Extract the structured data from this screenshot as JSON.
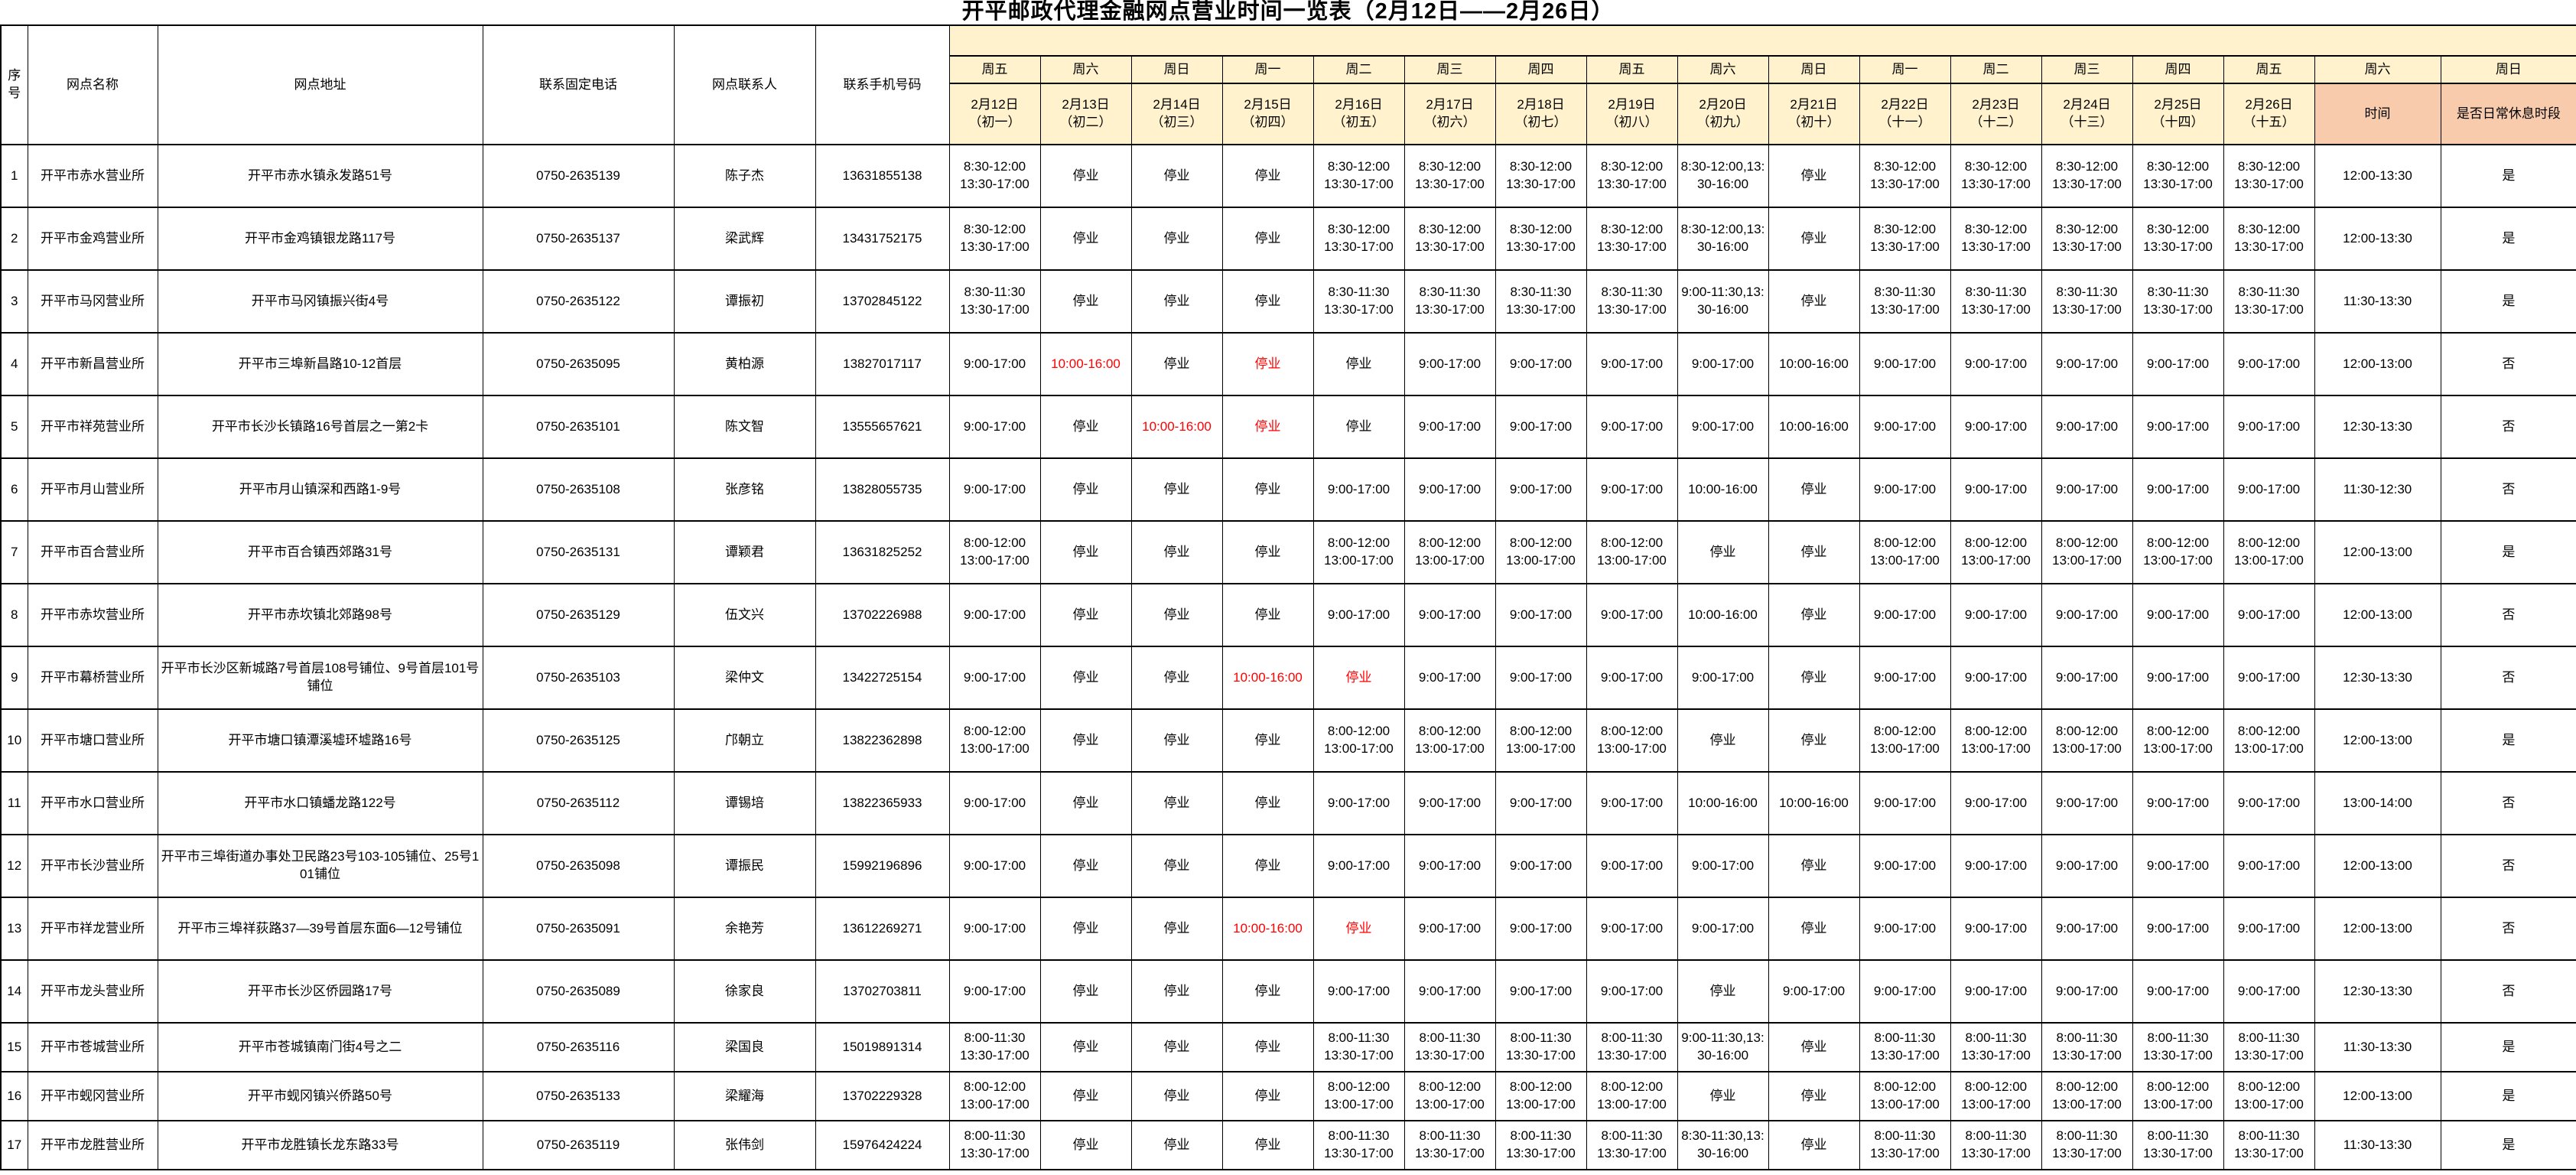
{
  "title": "开平邮政代理金融网点营业时间一览表（2月12日——2月26日）",
  "colors": {
    "header_bg": "#FFF2CC",
    "rest_header_bg": "#F8CBAD",
    "special_red": "#FF0000",
    "border": "#000000"
  },
  "table": {
    "info_headers": [
      "序号",
      "网点名称",
      "网点地址",
      "联系固定电话",
      "网点联系人",
      "联系手机号码"
    ],
    "date_columns": [
      {
        "weekday": "周五",
        "date": "2月12日",
        "lunar": "（初一）"
      },
      {
        "weekday": "周六",
        "date": "2月13日",
        "lunar": "（初二）"
      },
      {
        "weekday": "周日",
        "date": "2月14日",
        "lunar": "（初三）"
      },
      {
        "weekday": "周一",
        "date": "2月15日",
        "lunar": "（初四）"
      },
      {
        "weekday": "周二",
        "date": "2月16日",
        "lunar": "（初五）"
      },
      {
        "weekday": "周三",
        "date": "2月17日",
        "lunar": "（初六）"
      },
      {
        "weekday": "周四",
        "date": "2月18日",
        "lunar": "（初七）"
      },
      {
        "weekday": "周五",
        "date": "2月19日",
        "lunar": "（初八）"
      },
      {
        "weekday": "周六",
        "date": "2月20日",
        "lunar": "（初九）"
      },
      {
        "weekday": "周日",
        "date": "2月21日",
        "lunar": "（初十）"
      },
      {
        "weekday": "周一",
        "date": "2月22日",
        "lunar": "（十一）"
      },
      {
        "weekday": "周二",
        "date": "2月23日",
        "lunar": "（十二）"
      },
      {
        "weekday": "周三",
        "date": "2月24日",
        "lunar": "（十三）"
      },
      {
        "weekday": "周四",
        "date": "2月25日",
        "lunar": "（十四）"
      },
      {
        "weekday": "周五",
        "date": "2月26日",
        "lunar": "（十五）"
      }
    ],
    "rest_columns": [
      {
        "weekday": "周六",
        "label": "时间"
      },
      {
        "weekday": "周日",
        "label": "是否日常休息时段"
      }
    ],
    "closed_label": "停业",
    "rows": [
      {
        "no": "1",
        "name": "开平市赤水营业所",
        "address": "开平市赤水镇永发路51号",
        "landline": "0750-2635139",
        "contact": "陈子杰",
        "mobile": "13631855138",
        "schedule": [
          "8:30-12:00\n13:30-17:00",
          "停业",
          "停业",
          "停业",
          "8:30-12:00\n13:30-17:00",
          "8:30-12:00\n13:30-17:00",
          "8:30-12:00\n13:30-17:00",
          "8:30-12:00\n13:30-17:00",
          "8:30-12:00,13:30-16:00",
          "停业",
          "8:30-12:00\n13:30-17:00",
          "8:30-12:00\n13:30-17:00",
          "8:30-12:00\n13:30-17:00",
          "8:30-12:00\n13:30-17:00",
          "8:30-12:00\n13:30-17:00"
        ],
        "red_days": [],
        "rest_time": "12:00-13:30",
        "is_daily_rest": "是"
      },
      {
        "no": "2",
        "name": "开平市金鸡营业所",
        "address": "开平市金鸡镇银龙路117号",
        "landline": "0750-2635137",
        "contact": "梁武辉",
        "mobile": "13431752175",
        "schedule": [
          "8:30-12:00\n13:30-17:00",
          "停业",
          "停业",
          "停业",
          "8:30-12:00\n13:30-17:00",
          "8:30-12:00\n13:30-17:00",
          "8:30-12:00\n13:30-17:00",
          "8:30-12:00\n13:30-17:00",
          "8:30-12:00,13:30-16:00",
          "停业",
          "8:30-12:00\n13:30-17:00",
          "8:30-12:00\n13:30-17:00",
          "8:30-12:00\n13:30-17:00",
          "8:30-12:00\n13:30-17:00",
          "8:30-12:00\n13:30-17:00"
        ],
        "red_days": [],
        "rest_time": "12:00-13:30",
        "is_daily_rest": "是"
      },
      {
        "no": "3",
        "name": "开平市马冈营业所",
        "address": "开平市马冈镇振兴街4号",
        "landline": "0750-2635122",
        "contact": "谭振初",
        "mobile": "13702845122",
        "schedule": [
          "8:30-11:30\n13:30-17:00",
          "停业",
          "停业",
          "停业",
          "8:30-11:30\n13:30-17:00",
          "8:30-11:30\n13:30-17:00",
          "8:30-11:30\n13:30-17:00",
          "8:30-11:30\n13:30-17:00",
          "9:00-11:30,13:30-16:00",
          "停业",
          "8:30-11:30\n13:30-17:00",
          "8:30-11:30\n13:30-17:00",
          "8:30-11:30\n13:30-17:00",
          "8:30-11:30\n13:30-17:00",
          "8:30-11:30\n13:30-17:00"
        ],
        "red_days": [],
        "rest_time": "11:30-13:30",
        "is_daily_rest": "是"
      },
      {
        "no": "4",
        "name": "开平市新昌营业所",
        "address": "开平市三埠新昌路10-12首层",
        "landline": "0750-2635095",
        "contact": "黄柏源",
        "mobile": "13827017117",
        "schedule": [
          "9:00-17:00",
          "10:00-16:00",
          "停业",
          "停业",
          "停业",
          "9:00-17:00",
          "9:00-17:00",
          "9:00-17:00",
          "9:00-17:00",
          "10:00-16:00",
          "9:00-17:00",
          "9:00-17:00",
          "9:00-17:00",
          "9:00-17:00",
          "9:00-17:00"
        ],
        "red_days": [
          1,
          3
        ],
        "rest_time": "12:00-13:00",
        "is_daily_rest": "否"
      },
      {
        "no": "5",
        "name": "开平市祥苑营业所",
        "address": "开平市长沙长镇路16号首层之一第2卡",
        "landline": "0750-2635101",
        "contact": "陈文智",
        "mobile": "13555657621",
        "schedule": [
          "9:00-17:00",
          "停业",
          "10:00-16:00",
          "停业",
          "停业",
          "9:00-17:00",
          "9:00-17:00",
          "9:00-17:00",
          "9:00-17:00",
          "10:00-16:00",
          "9:00-17:00",
          "9:00-17:00",
          "9:00-17:00",
          "9:00-17:00",
          "9:00-17:00"
        ],
        "red_days": [
          2,
          3
        ],
        "rest_time": "12:30-13:30",
        "is_daily_rest": "否"
      },
      {
        "no": "6",
        "name": "开平市月山营业所",
        "address": "开平市月山镇深和西路1-9号",
        "landline": "0750-2635108",
        "contact": "张彦铭",
        "mobile": "13828055735",
        "schedule": [
          "9:00-17:00",
          "停业",
          "停业",
          "停业",
          "9:00-17:00",
          "9:00-17:00",
          "9:00-17:00",
          "9:00-17:00",
          "10:00-16:00",
          "停业",
          "9:00-17:00",
          "9:00-17:00",
          "9:00-17:00",
          "9:00-17:00",
          "9:00-17:00"
        ],
        "red_days": [],
        "rest_time": "11:30-12:30",
        "is_daily_rest": "否"
      },
      {
        "no": "7",
        "name": "开平市百合营业所",
        "address": "开平市百合镇西郊路31号",
        "landline": "0750-2635131",
        "contact": "谭颖君",
        "mobile": "13631825252",
        "schedule": [
          "8:00-12:00\n13:00-17:00",
          "停业",
          "停业",
          "停业",
          "8:00-12:00\n13:00-17:00",
          "8:00-12:00\n13:00-17:00",
          "8:00-12:00\n13:00-17:00",
          "8:00-12:00\n13:00-17:00",
          "停业",
          "停业",
          "8:00-12:00\n13:00-17:00",
          "8:00-12:00\n13:00-17:00",
          "8:00-12:00\n13:00-17:00",
          "8:00-12:00\n13:00-17:00",
          "8:00-12:00\n13:00-17:00"
        ],
        "red_days": [],
        "rest_time": "12:00-13:00",
        "is_daily_rest": "是"
      },
      {
        "no": "8",
        "name": "开平市赤坎营业所",
        "address": "开平市赤坎镇北郊路98号",
        "landline": "0750-2635129",
        "contact": "伍文兴",
        "mobile": "13702226988",
        "schedule": [
          "9:00-17:00",
          "停业",
          "停业",
          "停业",
          "9:00-17:00",
          "9:00-17:00",
          "9:00-17:00",
          "9:00-17:00",
          "10:00-16:00",
          "停业",
          "9:00-17:00",
          "9:00-17:00",
          "9:00-17:00",
          "9:00-17:00",
          "9:00-17:00"
        ],
        "red_days": [],
        "rest_time": "12:00-13:00",
        "is_daily_rest": "否"
      },
      {
        "no": "9",
        "name": "开平市幕桥营业所",
        "address": "开平市长沙区新城路7号首层108号铺位、9号首层101号铺位",
        "landline": "0750-2635103",
        "contact": "梁仲文",
        "mobile": "13422725154",
        "schedule": [
          "9:00-17:00",
          "停业",
          "停业",
          "10:00-16:00",
          "停业",
          "9:00-17:00",
          "9:00-17:00",
          "9:00-17:00",
          "9:00-17:00",
          "停业",
          "9:00-17:00",
          "9:00-17:00",
          "9:00-17:00",
          "9:00-17:00",
          "9:00-17:00"
        ],
        "red_days": [
          3,
          4
        ],
        "rest_time": "12:30-13:30",
        "is_daily_rest": "否"
      },
      {
        "no": "10",
        "name": "开平市塘口营业所",
        "address": "开平市塘口镇潭溪墟环墟路16号",
        "landline": "0750-2635125",
        "contact": "邝朝立",
        "mobile": "13822362898",
        "schedule": [
          "8:00-12:00\n13:00-17:00",
          "停业",
          "停业",
          "停业",
          "8:00-12:00\n13:00-17:00",
          "8:00-12:00\n13:00-17:00",
          "8:00-12:00\n13:00-17:00",
          "8:00-12:00\n13:00-17:00",
          "停业",
          "停业",
          "8:00-12:00\n13:00-17:00",
          "8:00-12:00\n13:00-17:00",
          "8:00-12:00\n13:00-17:00",
          "8:00-12:00\n13:00-17:00",
          "8:00-12:00\n13:00-17:00"
        ],
        "red_days": [],
        "rest_time": "12:00-13:00",
        "is_daily_rest": "是"
      },
      {
        "no": "11",
        "name": "开平市水口营业所",
        "address": "开平市水口镇蟠龙路122号",
        "landline": "0750-2635112",
        "contact": "谭锡培",
        "mobile": "13822365933",
        "schedule": [
          "9:00-17:00",
          "停业",
          "停业",
          "停业",
          "9:00-17:00",
          "9:00-17:00",
          "9:00-17:00",
          "9:00-17:00",
          "10:00-16:00",
          "10:00-16:00",
          "9:00-17:00",
          "9:00-17:00",
          "9:00-17:00",
          "9:00-17:00",
          "9:00-17:00"
        ],
        "red_days": [],
        "rest_time": "13:00-14:00",
        "is_daily_rest": "否"
      },
      {
        "no": "12",
        "name": "开平市长沙营业所",
        "address": "开平市三埠街道办事处卫民路23号103-105铺位、25号101铺位",
        "landline": "0750-2635098",
        "contact": "谭振民",
        "mobile": "15992196896",
        "schedule": [
          "9:00-17:00",
          "停业",
          "停业",
          "停业",
          "9:00-17:00",
          "9:00-17:00",
          "9:00-17:00",
          "9:00-17:00",
          "9:00-17:00",
          "停业",
          "9:00-17:00",
          "9:00-17:00",
          "9:00-17:00",
          "9:00-17:00",
          "9:00-17:00"
        ],
        "red_days": [],
        "rest_time": "12:00-13:00",
        "is_daily_rest": "否"
      },
      {
        "no": "13",
        "name": "开平市祥龙营业所",
        "address": "开平市三埠祥荻路37—39号首层东面6—12号铺位",
        "landline": "0750-2635091",
        "contact": "余艳芳",
        "mobile": "13612269271",
        "schedule": [
          "9:00-17:00",
          "停业",
          "停业",
          "10:00-16:00",
          "停业",
          "9:00-17:00",
          "9:00-17:00",
          "9:00-17:00",
          "9:00-17:00",
          "停业",
          "9:00-17:00",
          "9:00-17:00",
          "9:00-17:00",
          "9:00-17:00",
          "9:00-17:00"
        ],
        "red_days": [
          3,
          4
        ],
        "rest_time": "12:00-13:00",
        "is_daily_rest": "否"
      },
      {
        "no": "14",
        "name": "开平市龙头营业所",
        "address": "开平市长沙区侨园路17号",
        "landline": "0750-2635089",
        "contact": "徐家良",
        "mobile": "13702703811",
        "schedule": [
          "9:00-17:00",
          "停业",
          "停业",
          "停业",
          "9:00-17:00",
          "9:00-17:00",
          "9:00-17:00",
          "9:00-17:00",
          "停业",
          "9:00-17:00",
          "9:00-17:00",
          "9:00-17:00",
          "9:00-17:00",
          "9:00-17:00",
          "9:00-17:00"
        ],
        "red_days": [],
        "rest_time": "12:30-13:30",
        "is_daily_rest": "否"
      },
      {
        "no": "15",
        "name": "开平市苍城营业所",
        "address": "开平市苍城镇南门街4号之二",
        "landline": "0750-2635116",
        "contact": "梁国良",
        "mobile": "15019891314",
        "schedule": [
          "8:00-11:30\n13:30-17:00",
          "停业",
          "停业",
          "停业",
          "8:00-11:30\n13:30-17:00",
          "8:00-11:30\n13:30-17:00",
          "8:00-11:30\n13:30-17:00",
          "8:00-11:30\n13:30-17:00",
          "9:00-11:30,13:30-16:00",
          "停业",
          "8:00-11:30\n13:30-17:00",
          "8:00-11:30\n13:30-17:00",
          "8:00-11:30\n13:30-17:00",
          "8:00-11:30\n13:30-17:00",
          "8:00-11:30\n13:30-17:00"
        ],
        "red_days": [],
        "rest_time": "11:30-13:30",
        "is_daily_rest": "是"
      },
      {
        "no": "16",
        "name": "开平市蚬冈营业所",
        "address": "开平市蚬冈镇兴侨路50号",
        "landline": "0750-2635133",
        "contact": "梁耀海",
        "mobile": "13702229328",
        "schedule": [
          "8:00-12:00\n13:00-17:00",
          "停业",
          "停业",
          "停业",
          "8:00-12:00\n13:00-17:00",
          "8:00-12:00\n13:00-17:00",
          "8:00-12:00\n13:00-17:00",
          "8:00-12:00\n13:00-17:00",
          "停业",
          "停业",
          "8:00-12:00\n13:00-17:00",
          "8:00-12:00\n13:00-17:00",
          "8:00-12:00\n13:00-17:00",
          "8:00-12:00\n13:00-17:00",
          "8:00-12:00\n13:00-17:00"
        ],
        "red_days": [],
        "rest_time": "12:00-13:00",
        "is_daily_rest": "是"
      },
      {
        "no": "17",
        "name": "开平市龙胜营业所",
        "address": "开平市龙胜镇长龙东路33号",
        "landline": "0750-2635119",
        "contact": "张伟剑",
        "mobile": "15976424224",
        "schedule": [
          "8:00-11:30\n13:30-17:00",
          "停业",
          "停业",
          "停业",
          "8:00-11:30\n13:30-17:00",
          "8:00-11:30\n13:30-17:00",
          "8:00-11:30\n13:30-17:00",
          "8:00-11:30\n13:30-17:00",
          "8:30-11:30,13:30-16:00",
          "停业",
          "8:00-11:30\n13:30-17:00",
          "8:00-11:30\n13:30-17:00",
          "8:00-11:30\n13:30-17:00",
          "8:00-11:30\n13:30-17:00",
          "8:00-11:30\n13:30-17:00"
        ],
        "red_days": [],
        "rest_time": "11:30-13:30",
        "is_daily_rest": "是"
      }
    ]
  }
}
